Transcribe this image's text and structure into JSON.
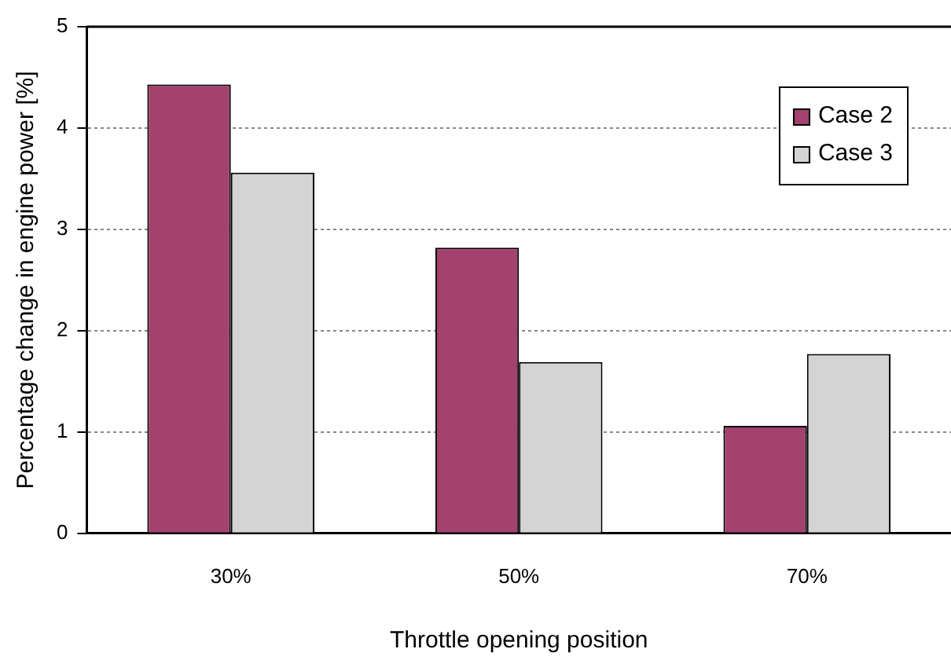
{
  "chart_data": {
    "type": "bar",
    "xlabel": "Throttle opening position",
    "ylabel": "Percentage change in engine power [%]",
    "categories": [
      "30%",
      "50%",
      "70%"
    ],
    "series": [
      {
        "name": "Case 2",
        "color": "#a3416f",
        "values": [
          4.43,
          2.82,
          1.06
        ]
      },
      {
        "name": "Case 3",
        "color": "#d4d4d4",
        "values": [
          3.56,
          1.69,
          1.77
        ]
      }
    ],
    "ylim": [
      0,
      5
    ],
    "yticks": [
      0,
      1,
      2,
      3,
      4,
      5
    ],
    "grid": "y",
    "legend": "top right"
  }
}
